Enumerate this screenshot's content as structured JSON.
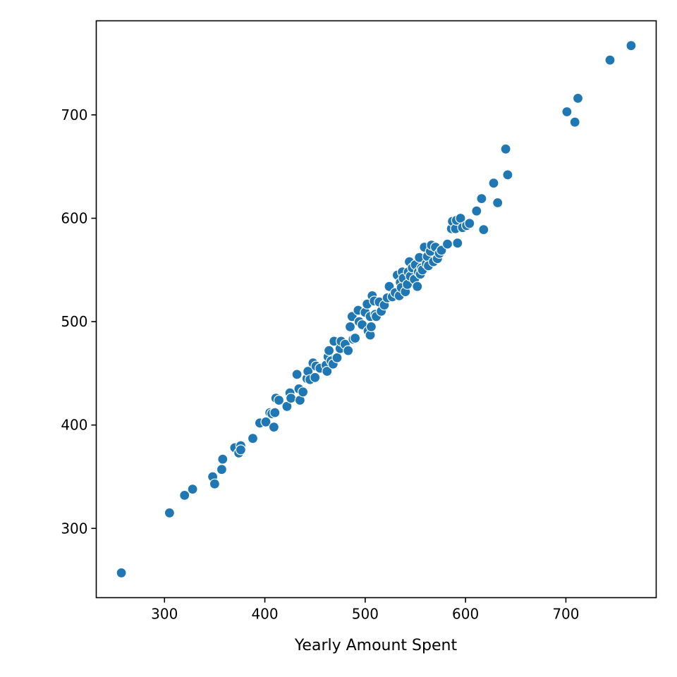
{
  "chart_data": {
    "type": "scatter",
    "title": "",
    "xlabel": "Yearly Amount Spent",
    "ylabel": "",
    "xlim": [
      232,
      790
    ],
    "ylim": [
      233,
      791
    ],
    "xticks": [
      300,
      400,
      500,
      600,
      700
    ],
    "yticks": [
      300,
      400,
      500,
      600,
      700
    ],
    "grid": false,
    "marker_color": "#1f77b4",
    "marker_edge_color": "#ffffff",
    "points": [
      [
        257,
        257
      ],
      [
        305,
        315
      ],
      [
        320,
        332
      ],
      [
        328,
        338
      ],
      [
        348,
        350
      ],
      [
        350,
        343
      ],
      [
        357,
        357
      ],
      [
        358,
        367
      ],
      [
        370,
        378
      ],
      [
        374,
        373
      ],
      [
        376,
        380
      ],
      [
        376,
        376
      ],
      [
        388,
        387
      ],
      [
        395,
        402
      ],
      [
        401,
        403
      ],
      [
        405,
        412
      ],
      [
        407,
        411
      ],
      [
        409,
        398
      ],
      [
        410,
        412
      ],
      [
        411,
        426
      ],
      [
        414,
        424
      ],
      [
        422,
        418
      ],
      [
        425,
        431
      ],
      [
        426,
        426
      ],
      [
        432,
        449
      ],
      [
        434,
        435
      ],
      [
        435,
        424
      ],
      [
        438,
        432
      ],
      [
        442,
        445
      ],
      [
        443,
        452
      ],
      [
        445,
        444
      ],
      [
        448,
        460
      ],
      [
        450,
        446
      ],
      [
        451,
        457
      ],
      [
        455,
        455
      ],
      [
        461,
        458
      ],
      [
        462,
        452
      ],
      [
        463,
        466
      ],
      [
        464,
        472
      ],
      [
        466,
        462
      ],
      [
        468,
        459
      ],
      [
        469,
        481
      ],
      [
        472,
        465
      ],
      [
        475,
        474
      ],
      [
        476,
        481
      ],
      [
        480,
        478
      ],
      [
        483,
        472
      ],
      [
        485,
        495
      ],
      [
        487,
        505
      ],
      [
        488,
        483
      ],
      [
        490,
        484
      ],
      [
        493,
        511
      ],
      [
        494,
        500
      ],
      [
        497,
        497
      ],
      [
        500,
        509
      ],
      [
        502,
        517
      ],
      [
        503,
        491
      ],
      [
        505,
        487
      ],
      [
        505,
        505
      ],
      [
        506,
        495
      ],
      [
        507,
        525
      ],
      [
        509,
        520
      ],
      [
        510,
        507
      ],
      [
        511,
        505
      ],
      [
        514,
        519
      ],
      [
        516,
        510
      ],
      [
        519,
        516
      ],
      [
        522,
        523
      ],
      [
        524,
        534
      ],
      [
        527,
        524
      ],
      [
        530,
        528
      ],
      [
        532,
        545
      ],
      [
        534,
        525
      ],
      [
        535,
        538
      ],
      [
        536,
        533
      ],
      [
        537,
        548
      ],
      [
        538,
        542
      ],
      [
        540,
        529
      ],
      [
        542,
        536
      ],
      [
        543,
        548
      ],
      [
        544,
        558
      ],
      [
        545,
        544
      ],
      [
        547,
        552
      ],
      [
        549,
        541
      ],
      [
        550,
        555
      ],
      [
        552,
        534
      ],
      [
        553,
        548
      ],
      [
        554,
        562
      ],
      [
        555,
        546
      ],
      [
        556,
        552
      ],
      [
        557,
        550
      ],
      [
        559,
        572
      ],
      [
        561,
        556
      ],
      [
        562,
        563
      ],
      [
        563,
        554
      ],
      [
        565,
        568
      ],
      [
        566,
        574
      ],
      [
        568,
        558
      ],
      [
        570,
        572
      ],
      [
        572,
        561
      ],
      [
        574,
        566
      ],
      [
        576,
        569
      ],
      [
        582,
        575
      ],
      [
        586,
        590
      ],
      [
        587,
        597
      ],
      [
        590,
        590
      ],
      [
        591,
        598
      ],
      [
        592,
        576
      ],
      [
        595,
        600
      ],
      [
        597,
        591
      ],
      [
        601,
        593
      ],
      [
        604,
        595
      ],
      [
        611,
        607
      ],
      [
        616,
        619
      ],
      [
        618,
        589
      ],
      [
        628,
        634
      ],
      [
        632,
        615
      ],
      [
        640,
        667
      ],
      [
        642,
        642
      ],
      [
        701,
        703
      ],
      [
        709,
        693
      ],
      [
        712,
        716
      ],
      [
        744,
        753
      ],
      [
        765,
        767
      ]
    ]
  }
}
